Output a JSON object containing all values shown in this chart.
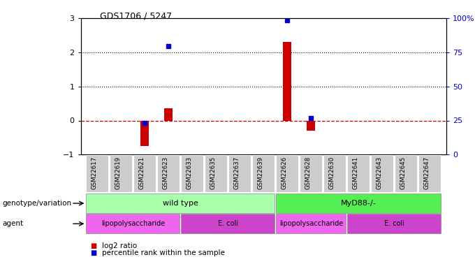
{
  "title": "GDS1706 / 5247",
  "samples": [
    "GSM22617",
    "GSM22619",
    "GSM22621",
    "GSM22623",
    "GSM22633",
    "GSM22635",
    "GSM22637",
    "GSM22639",
    "GSM22626",
    "GSM22628",
    "GSM22630",
    "GSM22641",
    "GSM22643",
    "GSM22645",
    "GSM22647"
  ],
  "log2_ratio": [
    0,
    0,
    -0.75,
    0.35,
    0,
    0,
    0,
    0,
    2.3,
    -0.3,
    0,
    0,
    0,
    0,
    0
  ],
  "pct_rank_low": [
    null,
    null,
    -0.08,
    null,
    null,
    null,
    null,
    null,
    null,
    0.07,
    null,
    null,
    null,
    null,
    null
  ],
  "pct_rank_high": [
    null,
    null,
    null,
    2.18,
    null,
    null,
    null,
    null,
    2.94,
    null,
    null,
    null,
    null,
    null,
    null
  ],
  "ylim": [
    -1,
    3
  ],
  "right_ylim": [
    0,
    100
  ],
  "right_yticks": [
    0,
    25,
    50,
    75,
    100
  ],
  "left_yticks": [
    -1,
    0,
    1,
    2,
    3
  ],
  "dotted_lines": [
    1,
    2
  ],
  "zero_line_color": "#cc0000",
  "bar_color": "#cc0000",
  "blue_color": "#0000cc",
  "genotype_wt_color": "#aaffaa",
  "genotype_myd_color": "#55ee55",
  "agent_lps_color": "#ee66ee",
  "agent_ecoli_color": "#cc44cc",
  "genotype_label": "genotype/variation",
  "agent_label": "agent",
  "wt_samples": [
    0,
    1,
    2,
    3,
    4,
    5,
    6,
    7
  ],
  "myd_samples": [
    8,
    9,
    10,
    11,
    12,
    13,
    14
  ],
  "lps_wt_samples": [
    0,
    1,
    2,
    3
  ],
  "ecoli_wt_samples": [
    4,
    5,
    6,
    7
  ],
  "lps_myd_samples": [
    8,
    9,
    10
  ],
  "ecoli_myd_samples": [
    11,
    12,
    13,
    14
  ],
  "legend_red": "log2 ratio",
  "legend_blue": "percentile rank within the sample"
}
